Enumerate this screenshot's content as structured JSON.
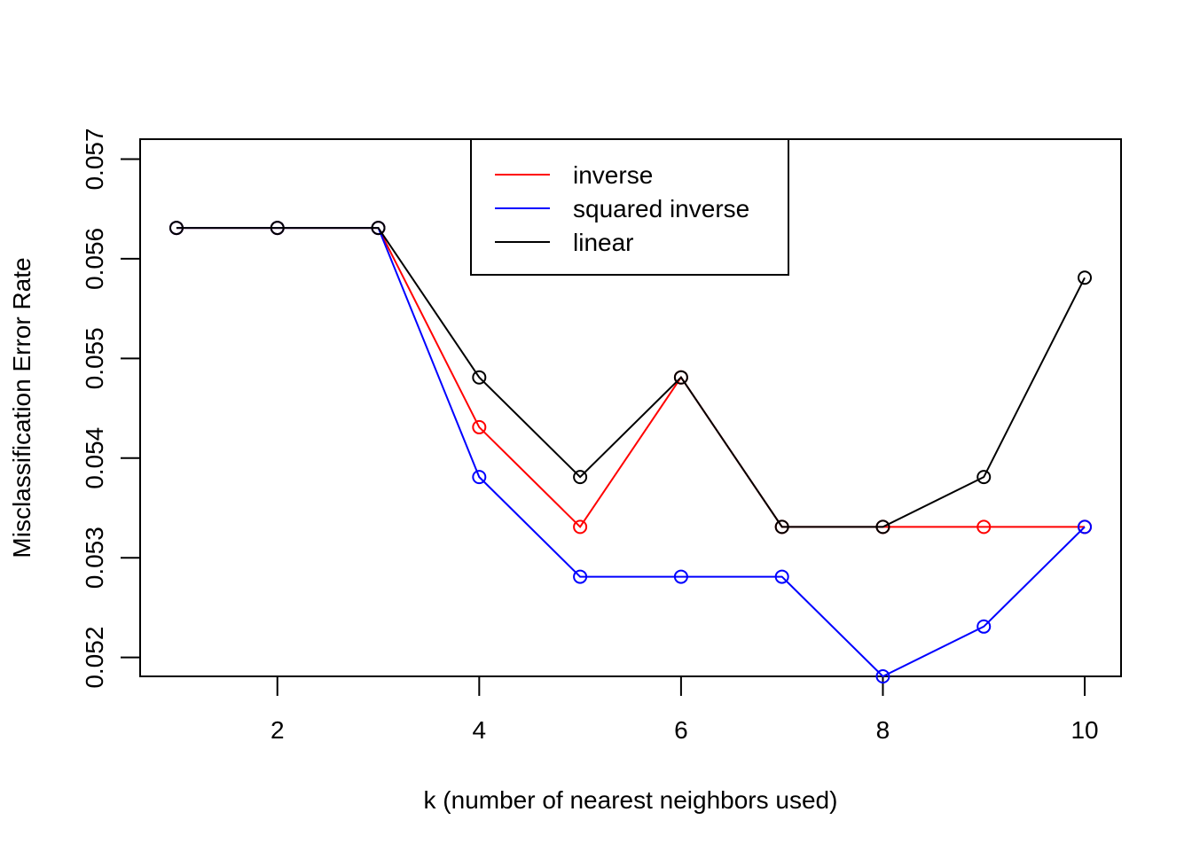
{
  "chart_data": {
    "type": "line",
    "title": "",
    "xlabel": "k (number of nearest neighbors used)",
    "ylabel": "Misclassification Error Rate",
    "xlim": [
      0.64,
      10.36
    ],
    "ylim": [
      0.05181,
      0.0572
    ],
    "x": [
      1,
      2,
      3,
      4,
      5,
      6,
      7,
      8,
      9,
      10
    ],
    "x_ticks": [
      2,
      4,
      6,
      8,
      10
    ],
    "x_tick_labels": [
      "2",
      "4",
      "6",
      "8",
      "10"
    ],
    "y_ticks": [
      0.052,
      0.053,
      0.054,
      0.055,
      0.056,
      0.057
    ],
    "y_tick_labels": [
      "0.052",
      "0.053",
      "0.054",
      "0.055",
      "0.056",
      "0.057"
    ],
    "grid": false,
    "legend_position": "top-center",
    "series": [
      {
        "name": "inverse",
        "color": "#ff0000",
        "values": [
          0.05631,
          0.05631,
          0.05631,
          0.05431,
          0.05331,
          0.05481,
          0.05331,
          0.05331,
          0.05331,
          0.05331
        ]
      },
      {
        "name": "squared inverse",
        "color": "#0000ff",
        "values": [
          0.05631,
          0.05631,
          0.05631,
          0.05381,
          0.05281,
          0.05281,
          0.05281,
          0.05181,
          0.05231,
          0.05331
        ]
      },
      {
        "name": "linear",
        "color": "#000000",
        "values": [
          0.05631,
          0.05631,
          0.05631,
          0.05481,
          0.05381,
          0.05481,
          0.05331,
          0.05331,
          0.05381,
          0.05581
        ]
      }
    ]
  }
}
